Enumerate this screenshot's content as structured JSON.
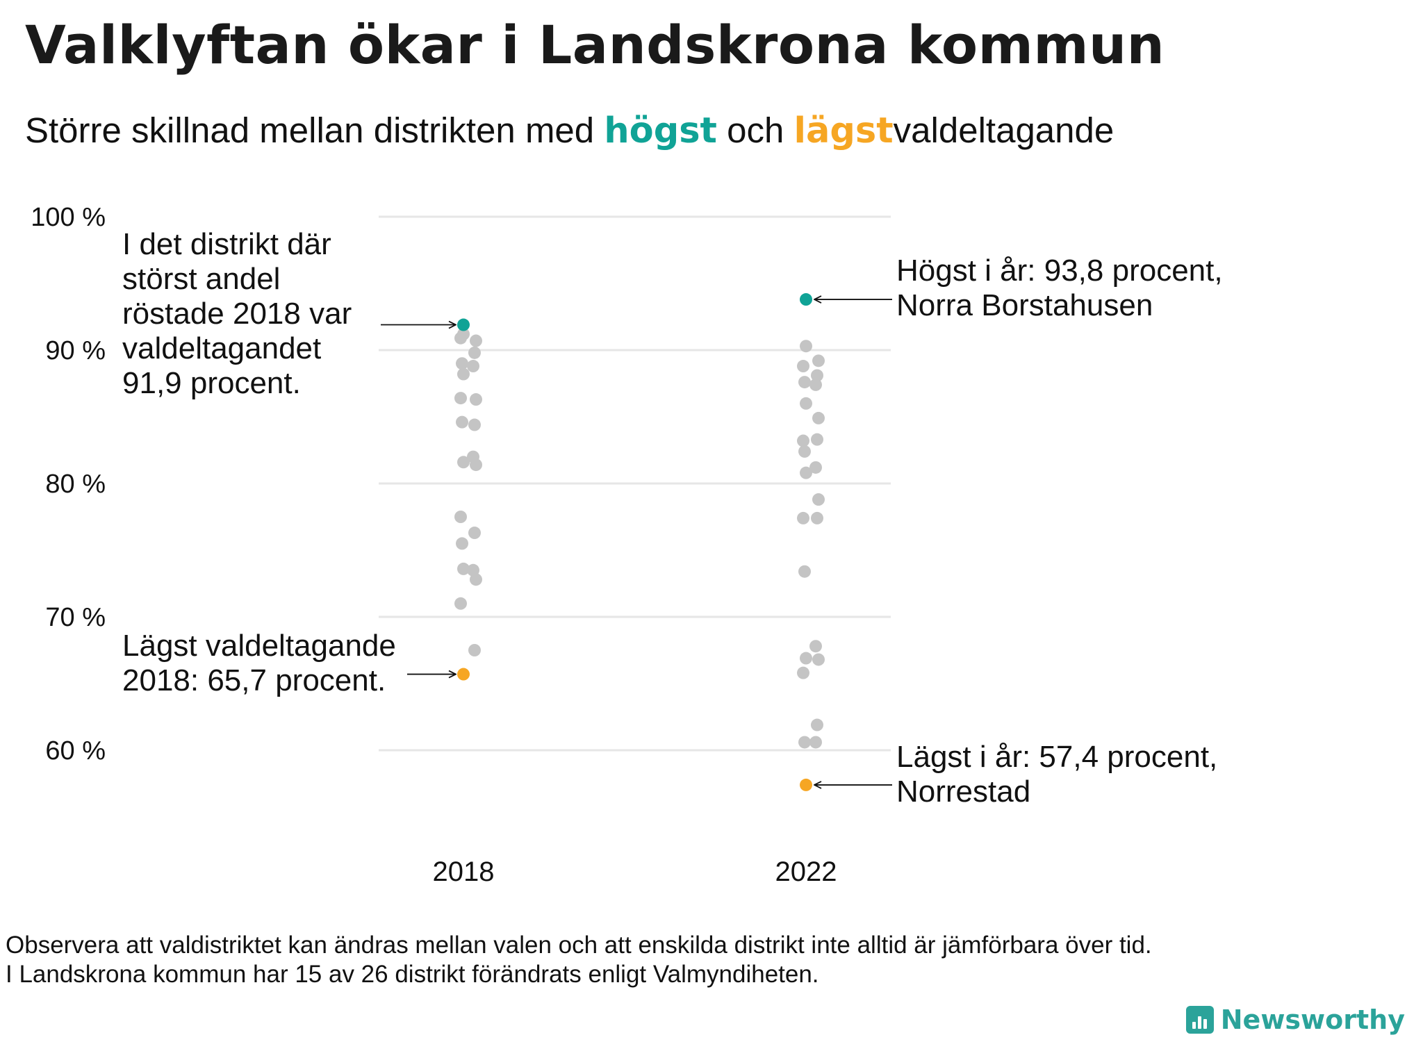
{
  "title": "Valklyftan ökar i Landskrona kommun",
  "subtitle": {
    "before": "Större skillnad mellan distrikten med",
    "high_word": "högst",
    "middle": "och",
    "low_word": "lägst",
    "after": "valdeltagande"
  },
  "colors": {
    "high": "#10A396",
    "low": "#F6A623",
    "other": "#C4C4C4",
    "gridline": "#E6E6E6"
  },
  "chart_data": {
    "type": "scatter",
    "categories": [
      "2018",
      "2022"
    ],
    "ylim": [
      55,
      100
    ],
    "yticks": [
      60,
      70,
      80,
      90,
      100
    ],
    "ytick_labels": [
      "60 %",
      "70 %",
      "80 %",
      "90 %",
      "100 %"
    ],
    "grid": true,
    "series": [
      {
        "category": "2018",
        "highest": 91.9,
        "lowest": 65.7,
        "others": [
          91.2,
          90.7,
          90.9,
          89.8,
          89.0,
          88.8,
          88.2,
          86.3,
          86.4,
          84.4,
          84.6,
          82.0,
          81.6,
          81.4,
          77.5,
          76.3,
          75.5,
          73.5,
          73.6,
          72.8,
          71.0,
          67.5
        ]
      },
      {
        "category": "2022",
        "highest": 93.8,
        "lowest": 57.4,
        "others": [
          90.3,
          89.2,
          88.8,
          88.1,
          87.6,
          87.4,
          86.0,
          84.9,
          83.2,
          83.3,
          82.4,
          81.2,
          80.8,
          78.8,
          77.4,
          77.4,
          73.4,
          67.8,
          66.9,
          66.8,
          65.8,
          61.9,
          60.6,
          60.6
        ]
      }
    ],
    "annotations": [
      {
        "target": "2018-highest",
        "lines": [
          "I det distrikt där",
          "störst andel",
          "röstade 2018 var",
          "valdeltagandet",
          "91,9 procent."
        ]
      },
      {
        "target": "2018-lowest",
        "lines": [
          "Lägst valdeltagande",
          "2018: 65,7 procent."
        ]
      },
      {
        "target": "2022-highest",
        "lines": [
          "Högst i år: 93,8 procent,",
          "Norra Borstahusen"
        ]
      },
      {
        "target": "2022-lowest",
        "lines": [
          "Lägst i år: 57,4 procent,",
          "Norrestad"
        ]
      }
    ]
  },
  "footnote": [
    "Observera att valdistriktet kan ändras mellan valen och att enskilda distrikt inte alltid är jämförbara över tid.",
    "I Landskrona kommun har 15 av 26 distrikt förändrats enligt Valmyndiheten."
  ],
  "brand": "Newsworthy"
}
